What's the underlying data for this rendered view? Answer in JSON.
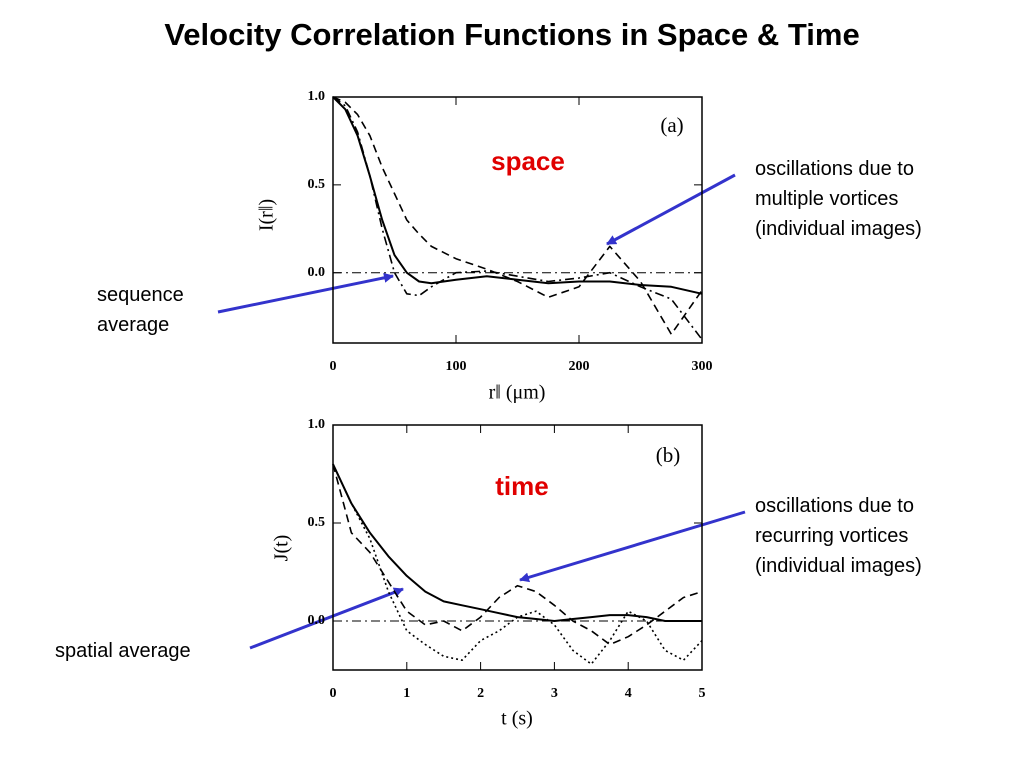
{
  "title": "Velocity Correlation Functions in Space & Time",
  "chart_data": [
    {
      "type": "line",
      "xlabel": "r‖ (μm)",
      "ylabel": "I(r‖)",
      "x": [
        0,
        10,
        20,
        30,
        40,
        50,
        60,
        70,
        80,
        100,
        125,
        150,
        175,
        200,
        225,
        250,
        275,
        300
      ],
      "series": [
        {
          "color": "#000000",
          "dash": "solid",
          "values": [
            1.0,
            0.93,
            0.78,
            0.55,
            0.3,
            0.1,
            0.0,
            -0.05,
            -0.06,
            -0.04,
            -0.02,
            -0.04,
            -0.06,
            -0.05,
            -0.05,
            -0.07,
            -0.08,
            -0.12
          ]
        },
        {
          "color": "#000000",
          "dash": "dashed",
          "values": [
            1.0,
            0.97,
            0.9,
            0.78,
            0.6,
            0.45,
            0.3,
            0.22,
            0.15,
            0.08,
            0.02,
            -0.05,
            -0.14,
            -0.08,
            0.15,
            -0.05,
            -0.35,
            -0.1
          ]
        },
        {
          "color": "#000000",
          "dashdot": true,
          "dash": "dashdot",
          "values": [
            1.0,
            0.95,
            0.8,
            0.55,
            0.25,
            0.0,
            -0.12,
            -0.13,
            -0.08,
            0.0,
            0.01,
            -0.02,
            -0.05,
            -0.03,
            0.0,
            -0.08,
            -0.15,
            -0.38
          ]
        }
      ],
      "xlim": [
        0,
        300
      ],
      "xticks": [
        0,
        100,
        200,
        300
      ],
      "ylim": [
        -0.4,
        1.0
      ],
      "yticks": [
        {
          "value": 0,
          "label": "0.0"
        },
        {
          "value": 0.5,
          "label": "0.5"
        },
        {
          "value": 1,
          "label": "1.0"
        }
      ],
      "annotations": [
        "space",
        "(a)",
        [
          "oscillations due to",
          "multiple vortices",
          "(individual images)"
        ],
        [
          "sequence",
          "average"
        ]
      ]
    },
    {
      "type": "line",
      "xlabel": "t (s)",
      "ylabel": "J(t)",
      "x": [
        0,
        0.25,
        0.5,
        0.75,
        1,
        1.25,
        1.5,
        1.75,
        2,
        2.25,
        2.5,
        2.75,
        3,
        3.25,
        3.5,
        3.75,
        4,
        4.25,
        4.5,
        4.75,
        5
      ],
      "series": [
        {
          "color": "#000000",
          "dash": "solid",
          "values": [
            0.8,
            0.6,
            0.45,
            0.33,
            0.23,
            0.15,
            0.1,
            0.08,
            0.06,
            0.04,
            0.02,
            0.01,
            0.0,
            0.01,
            0.02,
            0.03,
            0.03,
            0.02,
            0.0,
            0.0,
            0.0
          ]
        },
        {
          "color": "#000000",
          "dash": "dashed",
          "values": [
            0.8,
            0.45,
            0.35,
            0.2,
            0.05,
            -0.02,
            0.0,
            -0.05,
            0.02,
            0.12,
            0.18,
            0.15,
            0.08,
            0.0,
            -0.05,
            -0.12,
            -0.08,
            -0.02,
            0.05,
            0.12,
            0.15
          ]
        },
        {
          "color": "#000000",
          "dash": "dotted",
          "values": [
            0.8,
            0.6,
            0.42,
            0.15,
            -0.05,
            -0.12,
            -0.18,
            -0.2,
            -0.1,
            -0.05,
            0.02,
            0.05,
            -0.02,
            -0.15,
            -0.22,
            -0.1,
            0.05,
            0.0,
            -0.15,
            -0.2,
            -0.1
          ]
        }
      ],
      "xlim": [
        0,
        5
      ],
      "xticks": [
        0,
        1,
        2,
        3,
        4,
        5
      ],
      "ylim": [
        -0.25,
        1.0
      ],
      "yticks": [
        {
          "value": 0,
          "label": "0.0"
        },
        {
          "value": 0.5,
          "label": "0.5"
        },
        {
          "value": 1,
          "label": "1.0"
        }
      ],
      "annotations": [
        "time",
        "(b)",
        [
          "oscillations due to",
          "recurring vortices",
          "(individual images)"
        ],
        [
          "spatial average"
        ]
      ]
    }
  ]
}
